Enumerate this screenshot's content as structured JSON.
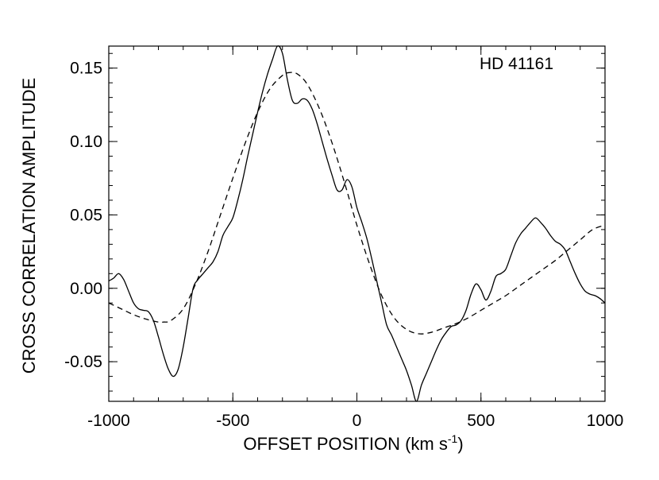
{
  "chart_data": {
    "type": "line",
    "title": "",
    "annotation": "HD 41161",
    "xlabel": "OFFSET POSITION (km s",
    "xlabel_sup": "-1",
    "xlabel_close": ")",
    "ylabel": "CROSS CORRELATION AMPLITUDE",
    "xlim": [
      -1000,
      1000
    ],
    "ylim": [
      -0.077,
      0.165
    ],
    "x_ticks": [
      {
        "value": -1000,
        "label": "-1000"
      },
      {
        "value": -500,
        "label": "-500"
      },
      {
        "value": 0,
        "label": "0"
      },
      {
        "value": 500,
        "label": "500"
      },
      {
        "value": 1000,
        "label": "1000"
      }
    ],
    "y_ticks": [
      {
        "value": -0.05,
        "label": "-0.05"
      },
      {
        "value": 0.0,
        "label": "0.00"
      },
      {
        "value": 0.05,
        "label": "0.05"
      },
      {
        "value": 0.1,
        "label": "0.10"
      },
      {
        "value": 0.15,
        "label": "0.15"
      }
    ],
    "x_minor_step": 100,
    "y_minor_step": 0.01,
    "grid": false,
    "series": [
      {
        "style": "solid",
        "x": [
          -1000,
          -980,
          -960,
          -940,
          -920,
          -900,
          -880,
          -860,
          -840,
          -820,
          -800,
          -780,
          -760,
          -740,
          -720,
          -700,
          -680,
          -660,
          -640,
          -620,
          -600,
          -580,
          -560,
          -540,
          -520,
          -500,
          -480,
          -460,
          -440,
          -420,
          -400,
          -380,
          -360,
          -340,
          -320,
          -300,
          -280,
          -260,
          -240,
          -220,
          -200,
          -180,
          -160,
          -140,
          -120,
          -100,
          -80,
          -60,
          -40,
          -20,
          0,
          20,
          40,
          60,
          80,
          100,
          120,
          140,
          160,
          180,
          200,
          220,
          240,
          260,
          280,
          300,
          320,
          340,
          360,
          380,
          400,
          420,
          440,
          460,
          480,
          500,
          520,
          540,
          560,
          580,
          600,
          620,
          640,
          660,
          680,
          700,
          720,
          740,
          760,
          780,
          800,
          820,
          840,
          860,
          880,
          900,
          920,
          940,
          960,
          980,
          1000
        ],
        "y": [
          0.005,
          0.007,
          0.01,
          0.006,
          -0.002,
          -0.01,
          -0.014,
          -0.015,
          -0.016,
          -0.022,
          -0.033,
          -0.045,
          -0.055,
          -0.06,
          -0.055,
          -0.04,
          -0.02,
          0.0,
          0.006,
          0.01,
          0.014,
          0.018,
          0.025,
          0.036,
          0.042,
          0.048,
          0.06,
          0.074,
          0.09,
          0.105,
          0.12,
          0.134,
          0.146,
          0.156,
          0.165,
          0.16,
          0.142,
          0.128,
          0.126,
          0.129,
          0.128,
          0.122,
          0.112,
          0.1,
          0.088,
          0.077,
          0.067,
          0.067,
          0.074,
          0.069,
          0.055,
          0.045,
          0.034,
          0.02,
          0.005,
          -0.01,
          -0.025,
          -0.032,
          -0.04,
          -0.048,
          -0.056,
          -0.066,
          -0.077,
          -0.066,
          -0.058,
          -0.05,
          -0.042,
          -0.035,
          -0.03,
          -0.026,
          -0.025,
          -0.022,
          -0.015,
          -0.004,
          0.003,
          -0.001,
          -0.008,
          -0.002,
          0.008,
          0.01,
          0.013,
          0.022,
          0.031,
          0.037,
          0.041,
          0.045,
          0.048,
          0.045,
          0.041,
          0.036,
          0.032,
          0.03,
          0.026,
          0.018,
          0.01,
          0.003,
          -0.002,
          -0.004,
          -0.005,
          -0.007,
          -0.01
        ]
      },
      {
        "style": "dashed",
        "x": [
          -1000,
          -950,
          -900,
          -850,
          -800,
          -780,
          -750,
          -700,
          -650,
          -600,
          -550,
          -500,
          -450,
          -400,
          -350,
          -300,
          -270,
          -240,
          -200,
          -150,
          -100,
          -50,
          0,
          50,
          100,
          150,
          200,
          250,
          300,
          350,
          400,
          450,
          500,
          550,
          600,
          650,
          700,
          750,
          800,
          850,
          900,
          950,
          1000
        ],
        "y": [
          -0.01,
          -0.014,
          -0.018,
          -0.021,
          -0.023,
          -0.023,
          -0.022,
          -0.014,
          0.003,
          0.025,
          0.05,
          0.075,
          0.099,
          0.12,
          0.136,
          0.145,
          0.147,
          0.146,
          0.139,
          0.122,
          0.099,
          0.072,
          0.043,
          0.017,
          -0.005,
          -0.02,
          -0.028,
          -0.031,
          -0.03,
          -0.027,
          -0.024,
          -0.02,
          -0.015,
          -0.01,
          -0.005,
          0.001,
          0.007,
          0.013,
          0.019,
          0.026,
          0.033,
          0.04,
          0.043
        ]
      }
    ]
  }
}
